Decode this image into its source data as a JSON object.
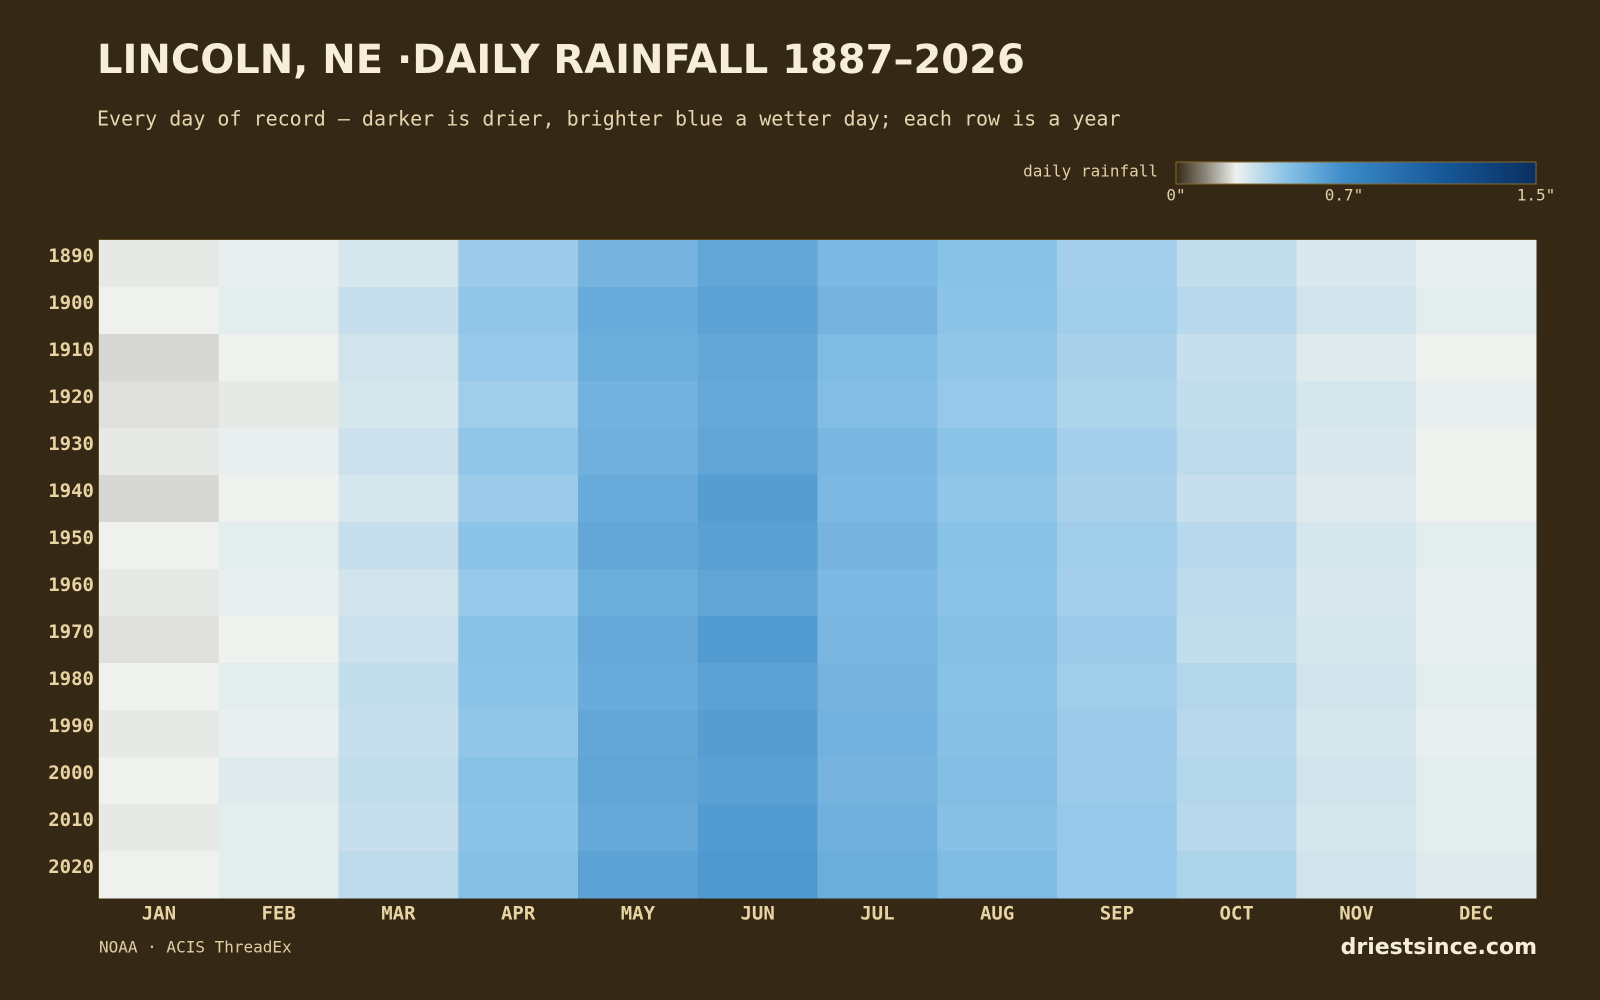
{
  "chart_data": {
    "type": "heatmap",
    "title": "LINCOLN, NE ·DAILY RAINFALL 1887–2026",
    "subtitle": "Every day of record — darker is drier, brighter blue a wetter day; each row is a year",
    "source": "NOAA · ACIS ThreadEx",
    "brand": "driestsince.com",
    "colorbar_label": "daily rainfall",
    "clim": [
      0,
      1.5
    ],
    "colorbar_ticks": [
      {
        "value": 0,
        "label": "0\""
      },
      {
        "value": 0.7,
        "label": "0.7\""
      },
      {
        "value": 1.5,
        "label": "1.5\""
      }
    ],
    "colorscale": [
      [
        0,
        "#352915"
      ],
      [
        0.12,
        "#8a8478"
      ],
      [
        0.25,
        "#eef1ee"
      ],
      [
        0.45,
        "#8cc4e8"
      ],
      [
        0.7,
        "#3d8cc8"
      ],
      [
        1.1,
        "#17599a"
      ],
      [
        1.5,
        "#0a2f60"
      ]
    ],
    "categories": [
      "JAN",
      "FEB",
      "MAR",
      "APR",
      "MAY",
      "JUN",
      "JUL",
      "AUG",
      "SEP",
      "OCT",
      "NOV",
      "DEC"
    ],
    "y_bins": [
      1887,
      1897,
      1907,
      1917,
      1927,
      1937,
      1947,
      1957,
      1967,
      1977,
      1987,
      1997,
      2007,
      2017,
      2027
    ],
    "ylim": [
      1887,
      2027
    ],
    "yticks": [
      1890,
      1900,
      1910,
      1920,
      1930,
      1940,
      1950,
      1960,
      1970,
      1980,
      1990,
      2000,
      2010,
      2020
    ],
    "values": [
      [
        0.24,
        0.26,
        0.3,
        0.42,
        0.52,
        0.58,
        0.5,
        0.46,
        0.4,
        0.34,
        0.29,
        0.26
      ],
      [
        0.25,
        0.27,
        0.33,
        0.44,
        0.56,
        0.6,
        0.52,
        0.45,
        0.41,
        0.36,
        0.31,
        0.27
      ],
      [
        0.22,
        0.25,
        0.31,
        0.43,
        0.55,
        0.58,
        0.49,
        0.44,
        0.39,
        0.33,
        0.28,
        0.25
      ],
      [
        0.23,
        0.24,
        0.3,
        0.41,
        0.53,
        0.57,
        0.48,
        0.43,
        0.38,
        0.34,
        0.3,
        0.26
      ],
      [
        0.24,
        0.26,
        0.32,
        0.44,
        0.54,
        0.59,
        0.51,
        0.45,
        0.4,
        0.35,
        0.29,
        0.25
      ],
      [
        0.22,
        0.25,
        0.3,
        0.42,
        0.56,
        0.62,
        0.5,
        0.44,
        0.39,
        0.33,
        0.28,
        0.25
      ],
      [
        0.25,
        0.27,
        0.33,
        0.45,
        0.58,
        0.61,
        0.52,
        0.46,
        0.41,
        0.36,
        0.3,
        0.27
      ],
      [
        0.24,
        0.26,
        0.31,
        0.43,
        0.55,
        0.59,
        0.5,
        0.45,
        0.4,
        0.35,
        0.29,
        0.26
      ],
      [
        0.23,
        0.25,
        0.32,
        0.46,
        0.57,
        0.63,
        0.51,
        0.47,
        0.42,
        0.34,
        0.3,
        0.26
      ],
      [
        0.25,
        0.27,
        0.34,
        0.45,
        0.56,
        0.6,
        0.52,
        0.46,
        0.41,
        0.37,
        0.31,
        0.27
      ],
      [
        0.24,
        0.26,
        0.33,
        0.44,
        0.58,
        0.62,
        0.53,
        0.47,
        0.42,
        0.36,
        0.3,
        0.26
      ],
      [
        0.25,
        0.28,
        0.34,
        0.46,
        0.59,
        0.61,
        0.52,
        0.48,
        0.42,
        0.37,
        0.31,
        0.27
      ],
      [
        0.24,
        0.27,
        0.33,
        0.45,
        0.57,
        0.63,
        0.54,
        0.47,
        0.43,
        0.36,
        0.3,
        0.27
      ],
      [
        0.25,
        0.27,
        0.35,
        0.47,
        0.6,
        0.64,
        0.55,
        0.49,
        0.43,
        0.38,
        0.31,
        0.28
      ]
    ]
  }
}
